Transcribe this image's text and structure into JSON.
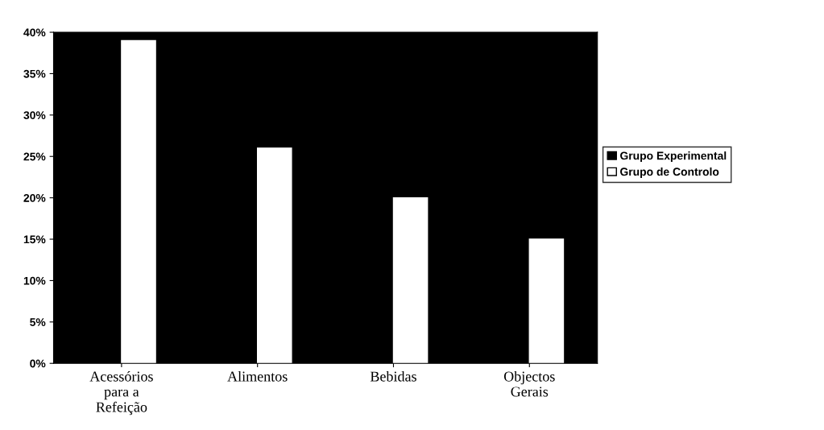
{
  "chart_data": {
    "type": "bar",
    "categories": [
      "Acessórios\npara a\nRefeição",
      "Alimentos",
      "Bebidas",
      "Objectos\nGerais"
    ],
    "series": [
      {
        "name": "Grupo Experimental",
        "color": "#000000",
        "values": [
          null,
          null,
          null,
          null
        ]
      },
      {
        "name": "Grupo de Controlo",
        "color": "#ffffff",
        "values": [
          39,
          26,
          20,
          15
        ]
      }
    ],
    "ylim": [
      0,
      40
    ],
    "yticks": [
      {
        "value": 0,
        "label": "0%"
      },
      {
        "value": 5,
        "label": "5%"
      },
      {
        "value": 10,
        "label": "10%"
      },
      {
        "value": 15,
        "label": "15%"
      },
      {
        "value": 20,
        "label": "20%"
      },
      {
        "value": 25,
        "label": "25%"
      },
      {
        "value": 30,
        "label": "30%"
      },
      {
        "value": 35,
        "label": "35%"
      },
      {
        "value": 40,
        "label": "40%"
      }
    ],
    "grid": false,
    "legend": "right"
  }
}
